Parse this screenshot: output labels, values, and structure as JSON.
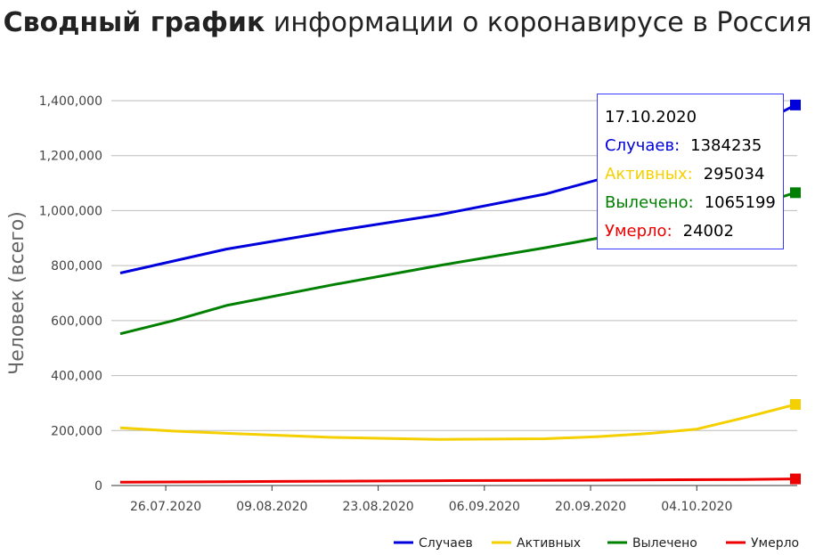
{
  "title": {
    "bold": "Сводный график",
    "rest": " информации о коронавирусе в Россия"
  },
  "chart_data": {
    "type": "line",
    "ylabel": "Человек (всего)",
    "ylim": [
      0,
      1400000
    ],
    "yticks": [
      "0",
      "200,000",
      "400,000",
      "600,000",
      "800,000",
      "1,000,000",
      "1,200,000",
      "1,400,000"
    ],
    "xticks": [
      "26.07.2020",
      "09.08.2020",
      "23.08.2020",
      "06.09.2020",
      "20.09.2020",
      "04.10.2020"
    ],
    "x_start": "2020-07-20",
    "x_end": "2020-10-17",
    "legend_position": "bottom-right",
    "series": [
      {
        "name": "Случаев",
        "color": "#0000dd",
        "points": [
          [
            "2020-07-20",
            773000
          ],
          [
            "2020-08-03",
            860000
          ],
          [
            "2020-08-17",
            925000
          ],
          [
            "2020-08-31",
            985000
          ],
          [
            "2020-09-14",
            1060000
          ],
          [
            "2020-09-28",
            1165000
          ],
          [
            "2020-10-10",
            1285000
          ],
          [
            "2020-10-17",
            1384235
          ]
        ]
      },
      {
        "name": "Активных",
        "color": "#f5d000",
        "points": [
          [
            "2020-07-20",
            210000
          ],
          [
            "2020-07-27",
            198000
          ],
          [
            "2020-08-03",
            190000
          ],
          [
            "2020-08-17",
            175000
          ],
          [
            "2020-08-31",
            168000
          ],
          [
            "2020-09-14",
            170000
          ],
          [
            "2020-09-21",
            178000
          ],
          [
            "2020-09-28",
            190000
          ],
          [
            "2020-10-04",
            205000
          ],
          [
            "2020-10-10",
            245000
          ],
          [
            "2020-10-17",
            295034
          ]
        ]
      },
      {
        "name": "Вылечено",
        "color": "#008000",
        "points": [
          [
            "2020-07-20",
            552000
          ],
          [
            "2020-07-27",
            600000
          ],
          [
            "2020-08-03",
            655000
          ],
          [
            "2020-08-17",
            730000
          ],
          [
            "2020-08-31",
            800000
          ],
          [
            "2020-09-14",
            865000
          ],
          [
            "2020-09-28",
            935000
          ],
          [
            "2020-10-10",
            1005000
          ],
          [
            "2020-10-17",
            1065199
          ]
        ]
      },
      {
        "name": "Умерло",
        "color": "#ee0000",
        "points": [
          [
            "2020-07-20",
            12000
          ],
          [
            "2020-08-10",
            15000
          ],
          [
            "2020-08-31",
            17500
          ],
          [
            "2020-09-21",
            19500
          ],
          [
            "2020-10-10",
            22000
          ],
          [
            "2020-10-17",
            24002
          ]
        ]
      }
    ],
    "tooltip": {
      "date": "17.10.2020",
      "rows": [
        {
          "label": "Случаев:",
          "value": "1384235",
          "color": "#0000dd"
        },
        {
          "label": "Активных:",
          "value": "295034",
          "color": "#f5d000"
        },
        {
          "label": "Вылечено:",
          "value": "1065199",
          "color": "#008000"
        },
        {
          "label": "Умерло:",
          "value": "24002",
          "color": "#ee0000"
        }
      ]
    }
  }
}
